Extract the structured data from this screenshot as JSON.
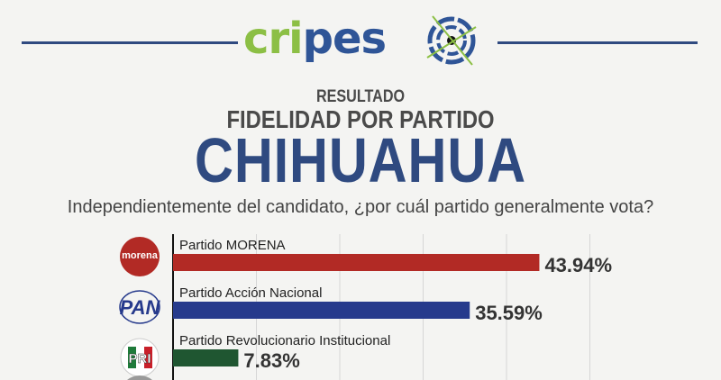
{
  "header": {
    "logo_text": "cripeso",
    "line1": "RESULTADO",
    "line2": "FIDELIDAD POR PARTIDO",
    "line3": "CHIHUAHUA",
    "question": "Independientemente del candidato, ¿por cuál partido generalmente vota?"
  },
  "colors": {
    "brand_green": "#8cbf45",
    "brand_blue": "#2f5597",
    "morena": "#b22a25",
    "pan": "#263a8c",
    "pri": "#1f5631"
  },
  "chart_data": {
    "type": "bar",
    "orientation": "horizontal",
    "grid": true,
    "xlim": [
      0,
      50
    ],
    "categories": [
      "Partido MORENA",
      "Partido Acción Nacional",
      "Partido Revolucionario Institucional"
    ],
    "values": [
      43.94,
      35.59,
      7.83
    ],
    "labels": [
      "43.94%",
      "35.59%",
      "7.83%"
    ],
    "logos": [
      "morena",
      "PAN",
      "PRI"
    ],
    "bar_colors": [
      "#b22a25",
      "#263a8c",
      "#1f5631"
    ]
  }
}
